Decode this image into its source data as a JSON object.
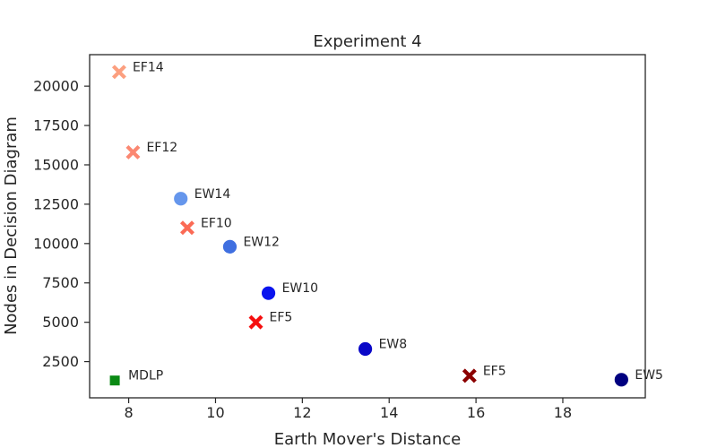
{
  "chart_data": {
    "type": "scatter",
    "title": "Experiment 4",
    "xlabel": "Earth Mover's Distance",
    "ylabel": "Nodes in Decision Diagram",
    "xlim": [
      7.1,
      19.9
    ],
    "ylim": [
      200,
      22000
    ],
    "xticks": [
      8,
      10,
      12,
      14,
      16,
      18
    ],
    "yticks": [
      2500,
      5000,
      7500,
      10000,
      12500,
      15000,
      17500,
      20000
    ],
    "grid": false,
    "legend": "none",
    "points": [
      {
        "label": "EF14",
        "x": 7.78,
        "y": 20900,
        "marker": "x",
        "color": "#fc9f7f"
      },
      {
        "label": "EF12",
        "x": 8.1,
        "y": 15800,
        "marker": "x",
        "color": "#fb8872"
      },
      {
        "label": "EF10",
        "x": 9.35,
        "y": 11000,
        "marker": "x",
        "color": "#fb6a55"
      },
      {
        "label": "EF5",
        "x": 10.93,
        "y": 5000,
        "marker": "x",
        "color": "#f50f0f"
      },
      {
        "label": "EF5",
        "x": 15.85,
        "y": 1600,
        "marker": "x",
        "color": "#8b0000"
      },
      {
        "label": "EW14",
        "x": 9.2,
        "y": 12850,
        "marker": "circle",
        "color": "#6596ec"
      },
      {
        "label": "EW12",
        "x": 10.33,
        "y": 9800,
        "marker": "circle",
        "color": "#3f6fe0"
      },
      {
        "label": "EW10",
        "x": 11.22,
        "y": 6850,
        "marker": "circle",
        "color": "#0a14ee"
      },
      {
        "label": "EW8",
        "x": 13.45,
        "y": 3300,
        "marker": "circle",
        "color": "#0a08c8"
      },
      {
        "label": "EW5",
        "x": 19.35,
        "y": 1350,
        "marker": "circle",
        "color": "#000080"
      },
      {
        "label": "MDLP",
        "x": 7.68,
        "y": 1300,
        "marker": "square",
        "color": "#0a8a14"
      }
    ]
  }
}
